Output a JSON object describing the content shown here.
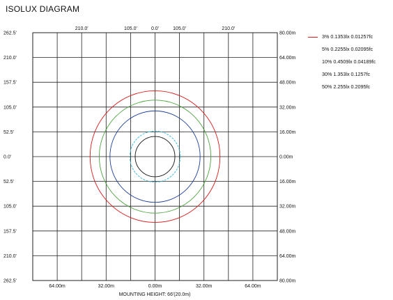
{
  "page": {
    "title": "ISOLUX DIAGRAM",
    "footer": "MOUNTING HEIGHT: 66'(20.0m)"
  },
  "chart_data": {
    "type": "isolux",
    "title": "ISOLUX DIAGRAM",
    "xlabel": "MOUNTING HEIGHT: 66'(20.0m)",
    "top_tick_labels": [
      "210.0'",
      "105.0'",
      "0.0'",
      "105.0'",
      "210.0'"
    ],
    "bottom_tick_labels": [
      "64.00m",
      "32.00m",
      "0.00m",
      "32.00m",
      "64.00m"
    ],
    "left_tick_labels": [
      "262.5'",
      "210.0'",
      "157.5'",
      "105.0'",
      "52.5'",
      "0.0'",
      "52.5'",
      "105.0'",
      "157.5'",
      "210.0'",
      "262.5'"
    ],
    "right_tick_labels": [
      "80.00m",
      "64.00m",
      "48.00m",
      "32.00m",
      "16.00m",
      "0.00m",
      "16.00m",
      "32.00m",
      "48.00m",
      "64.00m",
      "80.00m"
    ],
    "xlim_m": [
      -80,
      80
    ],
    "ylim_m": [
      -80,
      80
    ],
    "grid": true,
    "legend_position": "right",
    "contours": [
      {
        "label": "3% 0.1353lx 0.01257fc",
        "color": "#d91a1a",
        "radius_m": 42.5,
        "dash": ""
      },
      {
        "label": "5% 0.2255lx 0.02095fc",
        "color": "#4aa43c",
        "radius_m": 36.5,
        "dash": ""
      },
      {
        "label": "10% 0.4509lx 0.04189fc",
        "color": "#1f3f9a",
        "radius_m": 29.5,
        "dash": ""
      },
      {
        "label": "30% 1.353lx 0.1257fc",
        "color": "#35b6dd",
        "radius_m": 16.5,
        "dash": "3,1.5"
      },
      {
        "label": "50% 2.255lx 0.2095fc",
        "color": "#111111",
        "radius_m": 13.0,
        "dash": ""
      }
    ]
  }
}
